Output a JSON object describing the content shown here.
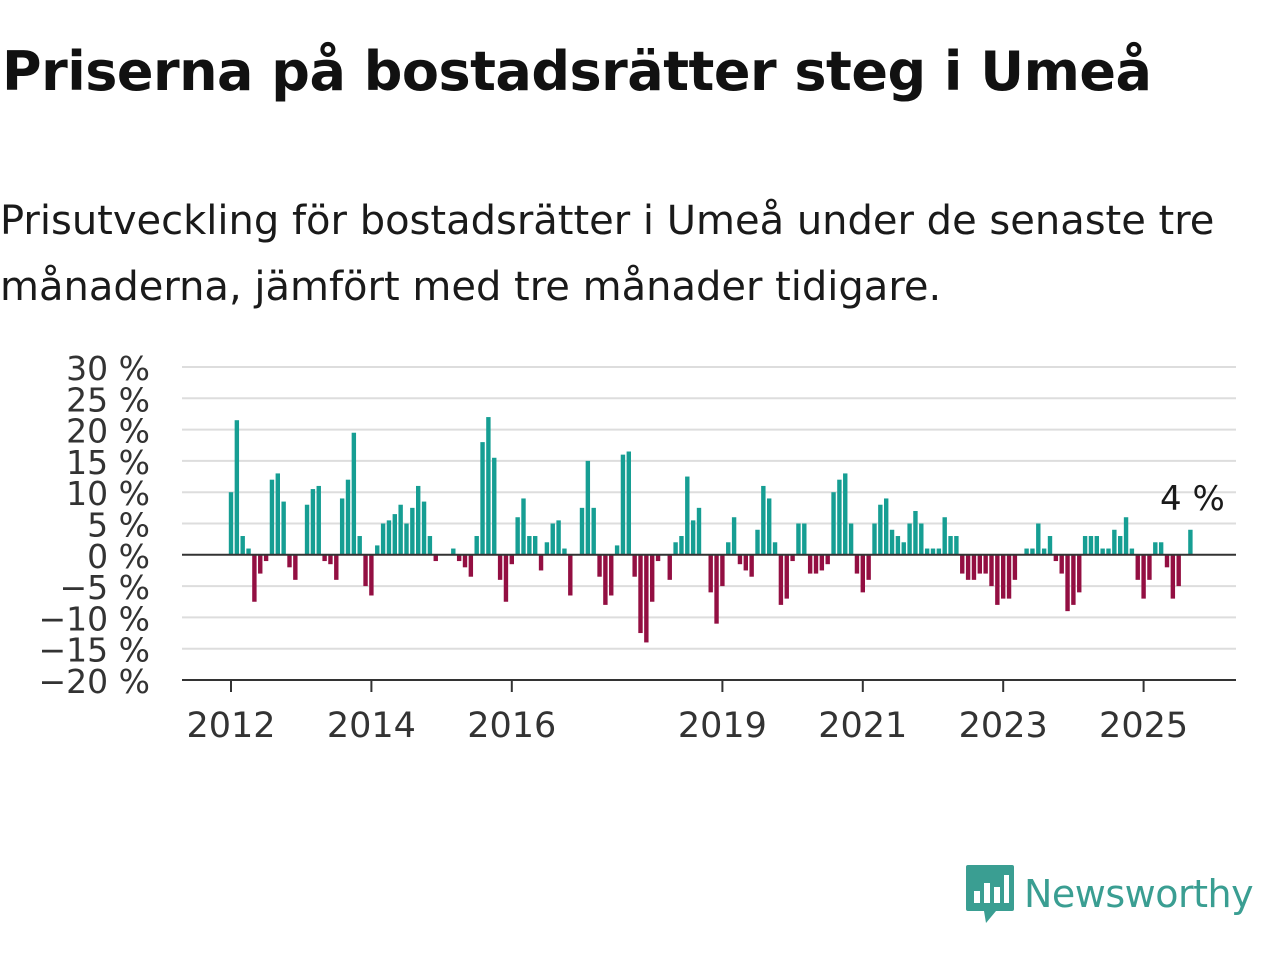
{
  "header": {
    "title": "Priserna på bostadsrätter steg i Umeå",
    "subtitle": "Prisutveckling för bostadsrätter i Umeå under de senaste tre månaderna, jämfört med tre månader tidigare."
  },
  "brand": {
    "name": "Newsworthy",
    "icon": "newsworthy-logo-icon",
    "color": "#3a9e92"
  },
  "chart_data": {
    "type": "bar",
    "title": "Priserna på bostadsrätter steg i Umeå",
    "subtitle": "Prisutveckling för bostadsrätter i Umeå under de senaste tre månaderna, jämfört med tre månader tidigare.",
    "ylim": [
      -20,
      30
    ],
    "yticks": [
      30,
      25,
      20,
      15,
      10,
      5,
      0,
      -5,
      -10,
      -15,
      -20
    ],
    "ytick_labels": [
      "30 %",
      "25 %",
      "20 %",
      "15 %",
      "10 %",
      "5 %",
      "0 %",
      "−5 %",
      "−10 %",
      "−15 %",
      "−20 %"
    ],
    "xticks": [
      {
        "year": 2012,
        "label": "2012"
      },
      {
        "year": 2014,
        "label": "2014"
      },
      {
        "year": 2016,
        "label": "2016"
      },
      {
        "year": 2019,
        "label": "2019"
      },
      {
        "year": 2021,
        "label": "2021"
      },
      {
        "year": 2023,
        "label": "2023"
      },
      {
        "year": 2025,
        "label": "2025"
      }
    ],
    "start": "2012-01",
    "frequency": "monthly",
    "grid": true,
    "legend": "none",
    "colors": {
      "positive": "#169e93",
      "negative": "#930f42",
      "grid": "#dddddd",
      "axis": "#333333"
    },
    "last_value_label": "4 %",
    "values": [
      10,
      21.5,
      3,
      1,
      -7.5,
      -3,
      -1,
      12,
      13,
      8.5,
      -2,
      -4,
      0,
      8,
      10.5,
      11,
      -1,
      -1.5,
      -4,
      9,
      12,
      19.5,
      3,
      -5,
      -6.5,
      1.5,
      5,
      5.5,
      6.5,
      8,
      5,
      7.5,
      11,
      8.5,
      3,
      -1,
      0,
      0,
      1,
      -1,
      -2,
      -3.5,
      3,
      18,
      22,
      15.5,
      -4,
      -7.5,
      -1.5,
      6,
      9,
      3,
      3,
      -2.5,
      2,
      5,
      5.5,
      1,
      -6.5,
      0,
      7.5,
      15,
      7.5,
      -3.5,
      -8,
      -6.5,
      1.5,
      16,
      16.5,
      -3.5,
      -12.5,
      -14,
      -7.5,
      -1,
      0,
      -4,
      2,
      3,
      12.5,
      5.5,
      7.5,
      0,
      -6,
      -11,
      -5,
      2,
      6,
      -1.5,
      -2.5,
      -3.5,
      4,
      11,
      9,
      2,
      -8,
      -7,
      -1,
      5,
      5,
      -3,
      -3,
      -2.5,
      -1.5,
      10,
      12,
      13,
      5,
      -3,
      -6,
      -4,
      5,
      8,
      9,
      4,
      3,
      2,
      5,
      7,
      5,
      1,
      1,
      1,
      6,
      3,
      3,
      -3,
      -4,
      -4,
      -3,
      -3,
      -5,
      -8,
      -7,
      -7,
      -4,
      0,
      1,
      1,
      5,
      1,
      3,
      -1,
      -3,
      -9,
      -8,
      -6,
      3,
      3,
      3,
      1,
      1,
      4,
      3,
      6,
      1,
      -4,
      -7,
      -4,
      2,
      2,
      -2,
      -7,
      -5,
      0,
      4
    ]
  }
}
